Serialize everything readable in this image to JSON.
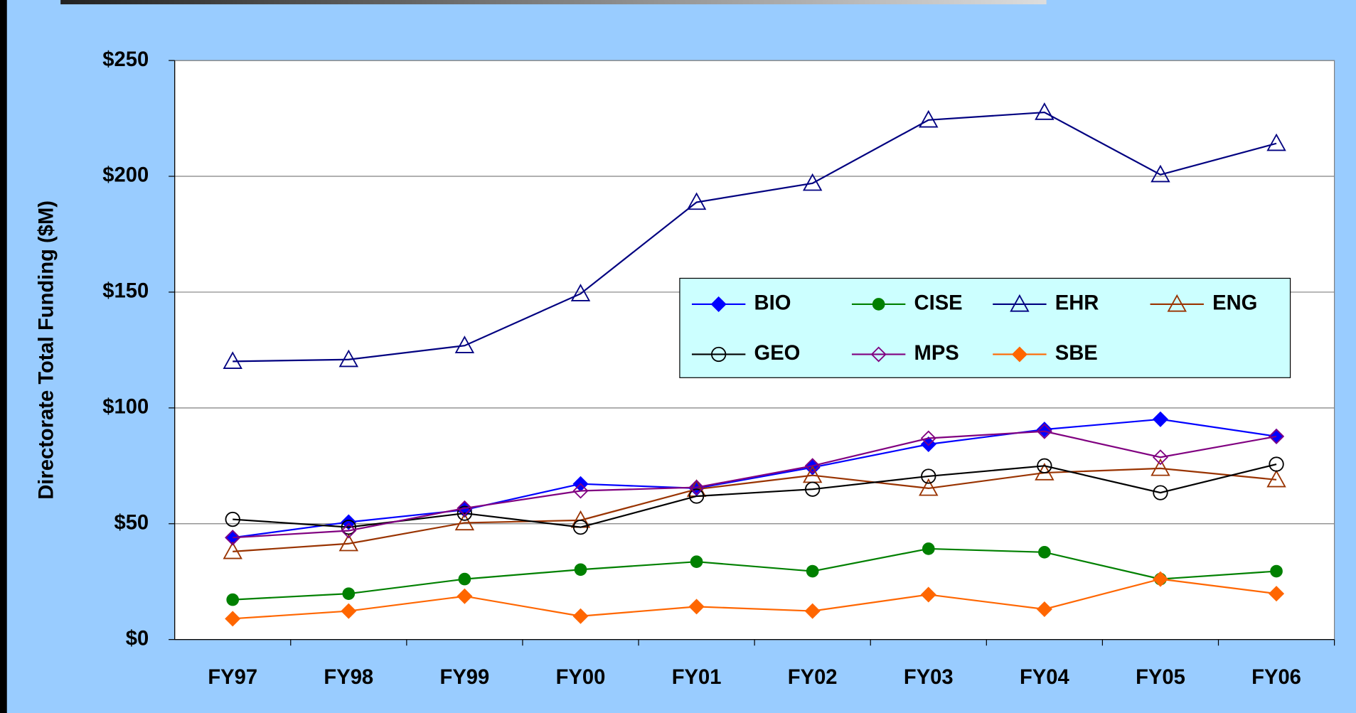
{
  "chart_data": {
    "type": "line",
    "y_label": "Directorate Total Funding ($M)",
    "categories": [
      "FY97",
      "FY98",
      "FY99",
      "FY00",
      "FY01",
      "FY02",
      "FY03",
      "FY04",
      "FY05",
      "FY06"
    ],
    "ylim": [
      0,
      250
    ],
    "yticks": [
      {
        "value": 0,
        "label": "$0"
      },
      {
        "value": 50,
        "label": "$50"
      },
      {
        "value": 100,
        "label": "$100"
      },
      {
        "value": 150,
        "label": "$150"
      },
      {
        "value": 200,
        "label": "$200"
      },
      {
        "value": 250,
        "label": "$250"
      }
    ],
    "grid": true,
    "legend": "center-right",
    "series": [
      {
        "name": "BIO",
        "color": "#0000ff",
        "marker": "diamond-filled",
        "values": [
          44,
          50.7,
          56,
          67.2,
          65.3,
          74.3,
          84.3,
          90.7,
          95.1,
          87.7
        ]
      },
      {
        "name": "CISE",
        "color": "#008000",
        "marker": "circle-filled",
        "values": [
          17.2,
          19.8,
          26.1,
          30.2,
          33.6,
          29.5,
          39.2,
          37.7,
          26.1,
          29.5
        ]
      },
      {
        "name": "EHR",
        "color": "#000080",
        "marker": "triangle-open",
        "values": [
          120.1,
          120.9,
          126.9,
          149.3,
          188.8,
          197,
          224.3,
          227.6,
          200.7,
          214.2
        ]
      },
      {
        "name": "ENG",
        "color": "#993300",
        "marker": "triangle-open",
        "values": [
          38,
          41.4,
          50.4,
          51.5,
          64.9,
          70.9,
          65.3,
          72,
          73.9,
          69
        ]
      },
      {
        "name": "GEO",
        "color": "#000000",
        "marker": "circle-open",
        "values": [
          51.9,
          48.5,
          54.5,
          48.5,
          61.9,
          64.9,
          70.5,
          75,
          63.4,
          75.7
        ]
      },
      {
        "name": "MPS",
        "color": "#800080",
        "marker": "diamond-open",
        "values": [
          44,
          47,
          56.7,
          64.2,
          65.7,
          75,
          86.9,
          89.9,
          78.7,
          87.7
        ]
      },
      {
        "name": "SBE",
        "color": "#ff6600",
        "marker": "diamond-filled",
        "values": [
          9,
          12.3,
          18.7,
          10.1,
          14.2,
          12.3,
          19.4,
          13.1,
          26.1,
          19.8
        ]
      }
    ]
  }
}
